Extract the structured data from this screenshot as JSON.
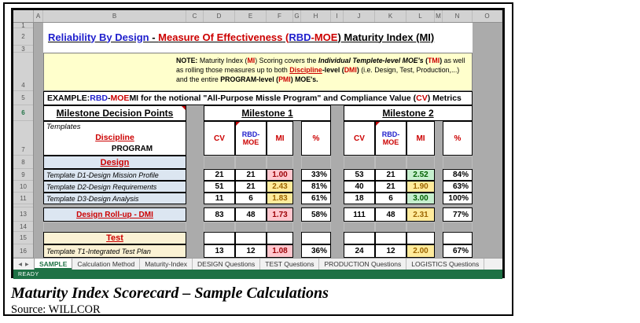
{
  "window": {
    "column_letters": [
      "A",
      "B",
      "C",
      "D",
      "E",
      "F",
      "G",
      "H",
      "I",
      "J",
      "K",
      "L",
      "M",
      "N",
      "O"
    ],
    "row_numbers": [
      "1",
      "2",
      "3",
      "4",
      "5",
      "6",
      "7",
      "8",
      "9",
      "10",
      "11",
      "13",
      "14",
      "15",
      "16"
    ],
    "title_segments": [
      {
        "t": "Reliability By Design",
        "s": "blue"
      },
      {
        "t": " - ",
        "s": "black"
      },
      {
        "t": "Measure Of Effectiveness",
        "s": "red"
      },
      {
        "t": " (",
        "s": "red"
      },
      {
        "t": "RBD",
        "s": "blue"
      },
      {
        "t": "-MOE",
        "s": "red"
      },
      {
        "t": ") Maturity Index (MI) ",
        "s": "black"
      }
    ],
    "note_segments": [
      {
        "t": "NOTE:  ",
        "s": "b"
      },
      {
        "t": "Maturity Index (",
        "s": "p"
      },
      {
        "t": "MI",
        "s": "redb"
      },
      {
        "t": ") Scoring covers the ",
        "s": "p"
      },
      {
        "t": "Individual Templete-level MOE's",
        "s": "bi"
      },
      {
        "t": "  (",
        "s": "b"
      },
      {
        "t": "TMI",
        "s": "redb"
      },
      {
        "t": ")",
        "s": "b"
      },
      {
        "t": " as well as rolling those measures up to both ",
        "s": "p"
      },
      {
        "t": "Discipline",
        "s": "redbu"
      },
      {
        "t": "-level",
        "s": "b"
      },
      {
        "t": " (",
        "s": "b"
      },
      {
        "t": "DMI",
        "s": "redb"
      },
      {
        "t": ")",
        "s": "b"
      },
      {
        "t": " (i.e. Design, Test, Production,...) and the entire ",
        "s": "p"
      },
      {
        "t": "PROGRAM-level",
        "s": "b"
      },
      {
        "t": " (",
        "s": "b"
      },
      {
        "t": "PMI",
        "s": "redb"
      },
      {
        "t": ") ",
        "s": "b"
      },
      {
        "t": "MOE's.",
        "s": "b"
      }
    ],
    "example_segments": [
      {
        "t": "EXAMPLE: ",
        "s": "black"
      },
      {
        "t": "RBD",
        "s": "blue"
      },
      {
        "t": "-",
        "s": "black"
      },
      {
        "t": "MOE",
        "s": "red"
      },
      {
        "t": " MI for the notional \"All-Purpose Missle Program\" and Compliance Value (",
        "s": "black"
      },
      {
        "t": "CV",
        "s": "red"
      },
      {
        "t": ") Metrics",
        "s": "black"
      }
    ],
    "table": {
      "left_header": "Milestone Decision Points",
      "templates_label": "Templates",
      "discipline_label": "Discipline",
      "program_label": "PROGRAM",
      "milestone1_label": "Milestone 1",
      "milestone2_label": "Milestone 2",
      "col_headers": {
        "cv": "CV",
        "moe_segments": [
          {
            "t": "RBD-",
            "s": "blueb"
          },
          {
            "t": "MOE",
            "s": "redb"
          }
        ],
        "mi": "MI",
        "pct": "%"
      },
      "design": {
        "header": "Design",
        "rows": [
          {
            "label": "Template D1-Design Mission Profile",
            "m1": {
              "cv": "21",
              "moe": "21",
              "mi": "1.00",
              "style": "red",
              "pct": "33%"
            },
            "m2": {
              "cv": "53",
              "moe": "21",
              "mi": "2.52",
              "style": "green",
              "pct": "84%"
            }
          },
          {
            "label": "Template D2-Design Requirements",
            "m1": {
              "cv": "51",
              "moe": "21",
              "mi": "2.43",
              "style": "yellow",
              "pct": "81%"
            },
            "m2": {
              "cv": "40",
              "moe": "21",
              "mi": "1.90",
              "style": "yellow",
              "pct": "63%"
            }
          },
          {
            "label": "Template D3-Design Analysis",
            "m1": {
              "cv": "11",
              "moe": "6",
              "mi": "1.83",
              "style": "yellow",
              "pct": "61%"
            },
            "m2": {
              "cv": "18",
              "moe": "6",
              "mi": "3.00",
              "style": "green",
              "pct": "100%"
            }
          }
        ],
        "rollup": {
          "label": "Design Roll-up - DMI",
          "m1": {
            "cv": "83",
            "moe": "48",
            "mi": "1.73",
            "style": "red",
            "pct": "58%"
          },
          "m2": {
            "cv": "111",
            "moe": "48",
            "mi": "2.31",
            "style": "yellow",
            "pct": "77%"
          }
        }
      },
      "test": {
        "header": "Test",
        "rows": [
          {
            "label": "Template T1-Integrated Test Plan",
            "m1": {
              "cv": "13",
              "moe": "12",
              "mi": "1.08",
              "style": "red",
              "pct": "36%"
            },
            "m2": {
              "cv": "24",
              "moe": "12",
              "mi": "2.00",
              "style": "yellow",
              "pct": "67%"
            }
          }
        ]
      }
    },
    "tabs": [
      "SAMPLE",
      "Calculation Method",
      "Maturity-Index",
      "DESIGN Questions",
      "TEST Questions",
      "PRODUCTION Questions",
      "LOGISTICS Questions"
    ],
    "status": "READY"
  },
  "caption": {
    "title": "Maturity Index Scorecard – Sample Calculations",
    "source": "Source: WILLCOR"
  },
  "colors": {
    "excel_green": "#217346",
    "red_text": "#CC0000",
    "blue_text": "#1F1FCC",
    "mi_red_bg": "#FFC7CE",
    "mi_red_text": "#9C0006",
    "mi_yellow_bg": "#FFEB9C",
    "mi_yellow_text": "#9C6500",
    "mi_green_bg": "#C6EFCE",
    "mi_green_text": "#006100",
    "design_row_bg": "#DCE6F1",
    "test_row_bg": "#FBF2D4",
    "note_bg": "#FFFFCC",
    "sheet_gray": "#ABABAB"
  }
}
